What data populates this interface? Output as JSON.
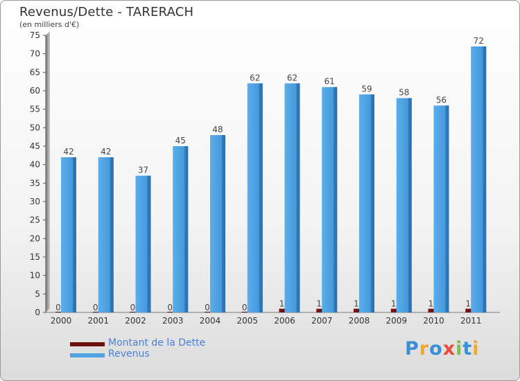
{
  "title": "Revenus/Dette - TARERACH",
  "subtitle": "(en milliers d'€)",
  "logo": [
    "P",
    "r",
    "o",
    "x",
    "i",
    "t",
    "i"
  ],
  "logo_colors": [
    "#3a8fd6",
    "#f5a623",
    "#3a8fd6",
    "#e84c3d",
    "#7cc242",
    "#3a8fd6",
    "#f5a623"
  ],
  "chart_data": {
    "type": "bar",
    "categories": [
      "2000",
      "2001",
      "2002",
      "2003",
      "2004",
      "2005",
      "2006",
      "2007",
      "2008",
      "2009",
      "2010",
      "2011"
    ],
    "series": [
      {
        "name": "Montant de la Dette",
        "color": "#6b0f0f",
        "values": [
          0,
          0,
          0,
          0,
          0,
          0,
          1,
          1,
          1,
          1,
          1,
          1
        ]
      },
      {
        "name": "Revenus",
        "color": "#4fa3e3",
        "values": [
          42,
          42,
          37,
          45,
          48,
          62,
          62,
          61,
          59,
          58,
          56,
          72
        ]
      }
    ],
    "data_labels": {
      "Montant de la Dette": [
        "0",
        "0",
        "0",
        "0",
        "0",
        "0",
        "1",
        "1",
        "1",
        "1",
        "1",
        "1"
      ],
      "Revenus": [
        "42",
        "42",
        "37",
        "45",
        "48",
        "62",
        "62",
        "61",
        "59",
        "58",
        "56",
        "72"
      ]
    },
    "yticks": [
      0,
      5,
      10,
      15,
      20,
      25,
      30,
      35,
      40,
      45,
      50,
      55,
      60,
      65,
      70,
      75
    ],
    "ylim": [
      0,
      75
    ],
    "grid": false,
    "legend_position": "bottom-left"
  }
}
